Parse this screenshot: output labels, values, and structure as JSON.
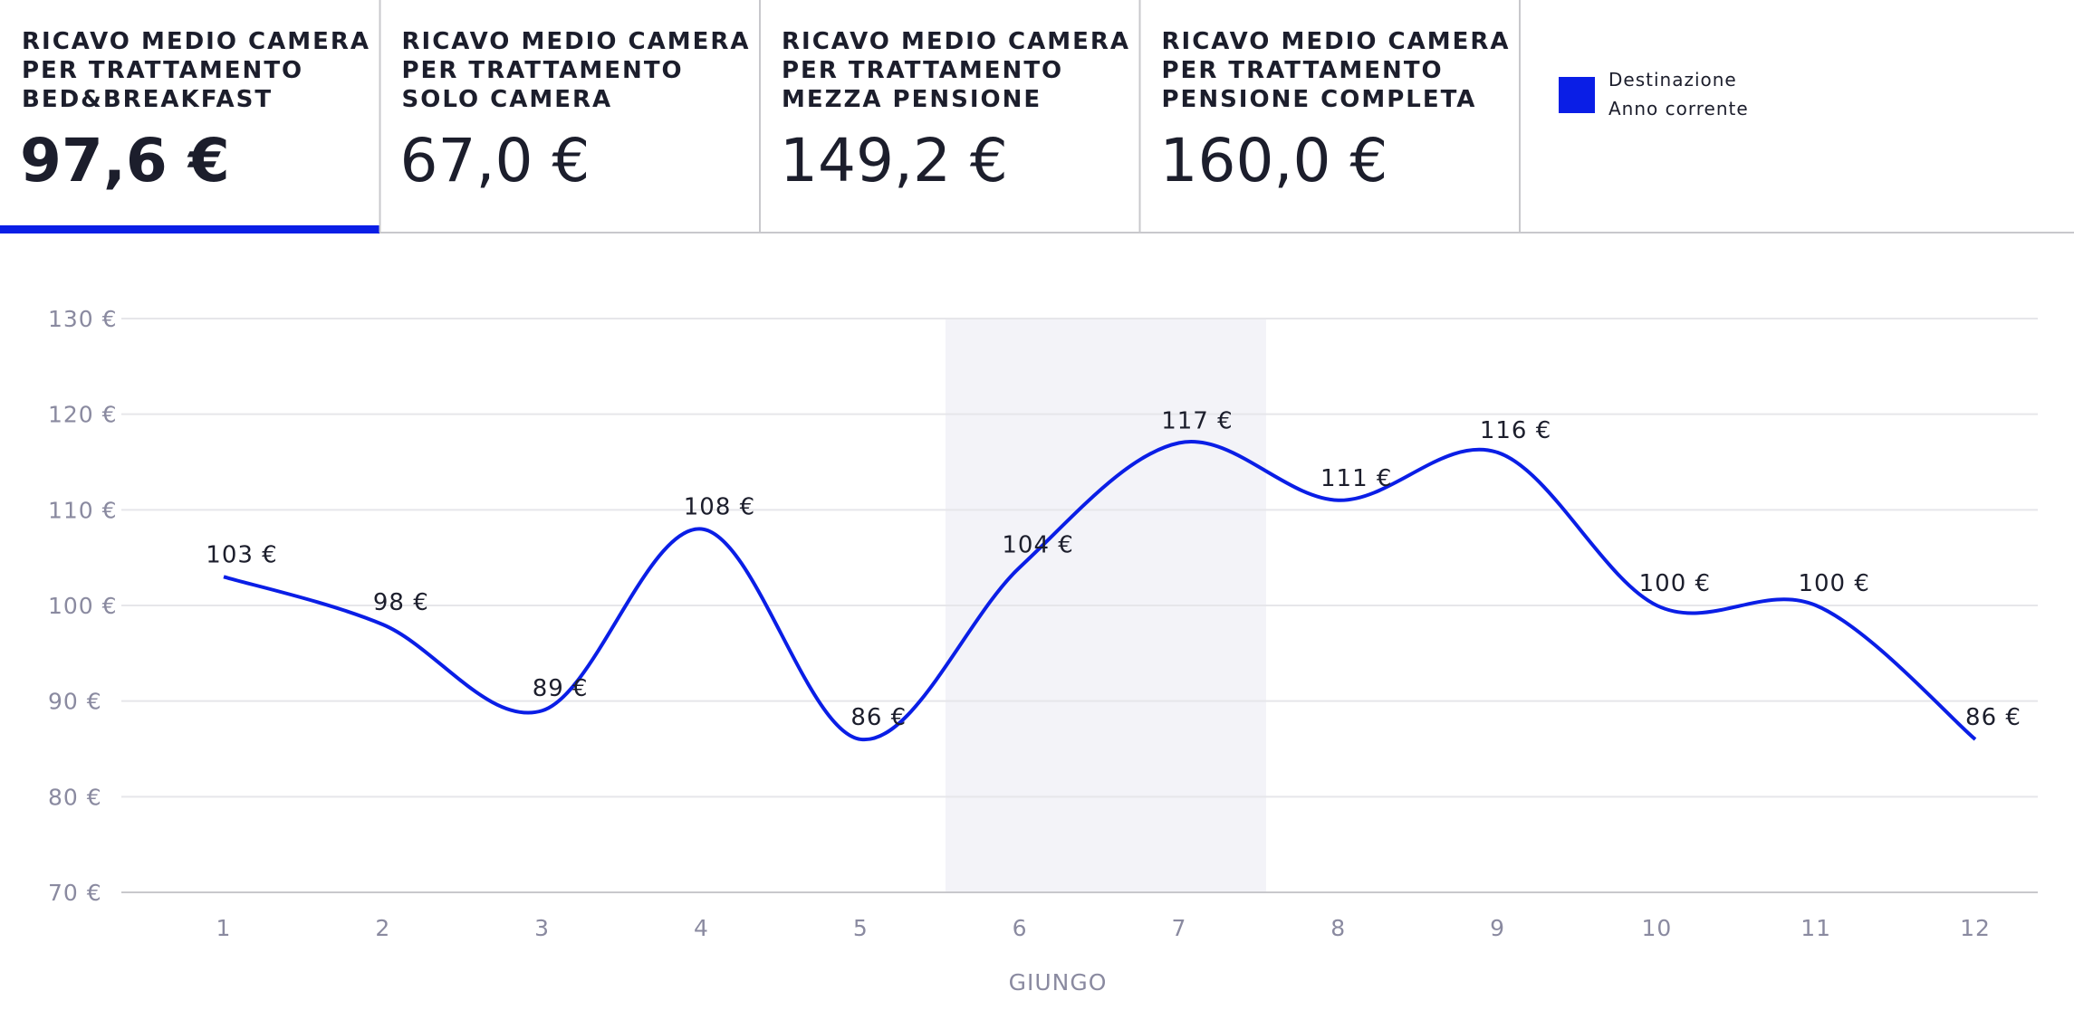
{
  "cards": [
    {
      "title": [
        "RICAVO MEDIO CAMERA",
        "PER TRATTAMENTO",
        "BED&BREAKFAST"
      ],
      "value": "97,6 €"
    },
    {
      "title": [
        "RICAVO MEDIO CAMERA",
        "PER TRATTAMENTO",
        "SOLO CAMERA"
      ],
      "value": "67,0 €"
    },
    {
      "title": [
        "RICAVO MEDIO CAMERA",
        "PER TRATTAMENTO",
        "MEZZA PENSIONE"
      ],
      "value": "149,2 €"
    },
    {
      "title": [
        "RICAVO MEDIO CAMERA",
        "PER TRATTAMENTO",
        "PENSIONE COMPLETA"
      ],
      "value": "160,0 €"
    }
  ],
  "chart_data": {
    "type": "line",
    "categories": [
      "1",
      "2",
      "3",
      "4",
      "5",
      "6",
      "7",
      "8",
      "9",
      "10",
      "11",
      "12"
    ],
    "series": [
      {
        "name": "Destinazione Anno corrente",
        "color": "#0a1ee6",
        "values": [
          103,
          98,
          89,
          108,
          86,
          104,
          117,
          111,
          116,
          100,
          100,
          86
        ],
        "value_labels": [
          "103 €",
          "98 €",
          "89 €",
          "108 €",
          "86 €",
          "104 €",
          "117 €",
          "111 €",
          "116 €",
          "100 €",
          "100 €",
          "86 €"
        ]
      }
    ],
    "ylim": [
      70,
      130
    ],
    "yticks": [
      {
        "value": 70,
        "label": "70 €"
      },
      {
        "value": 80,
        "label": "80 €"
      },
      {
        "value": 90,
        "label": "90 €"
      },
      {
        "value": 100,
        "label": "100 €"
      },
      {
        "value": 110,
        "label": "110 €"
      },
      {
        "value": 120,
        "label": "120 €"
      },
      {
        "value": 130,
        "label": "130 €"
      }
    ],
    "xlabel": "GIUNGO",
    "grid": true
  }
}
